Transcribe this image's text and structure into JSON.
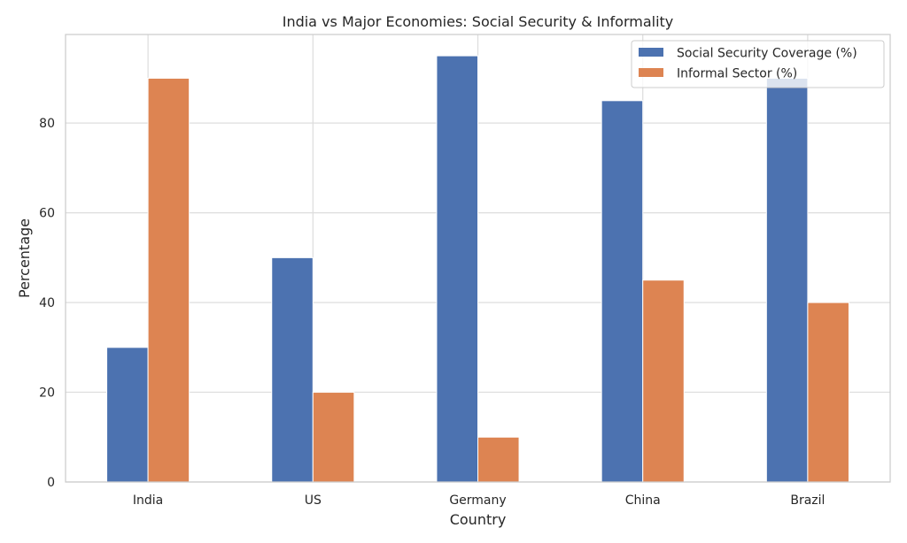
{
  "chart_data": {
    "type": "bar",
    "title": "India vs Major Economies: Social Security & Informality",
    "xlabel": "Country",
    "ylabel": "Percentage",
    "categories": [
      "India",
      "US",
      "Germany",
      "China",
      "Brazil"
    ],
    "series": [
      {
        "name": "Social Security Coverage (%)",
        "values": [
          30,
          50,
          95,
          85,
          90
        ],
        "color": "#4c72b0"
      },
      {
        "name": "Informal Sector (%)",
        "values": [
          90,
          20,
          10,
          45,
          40
        ],
        "color": "#dd8452"
      }
    ],
    "ylim": [
      0,
      99.75
    ],
    "yticks": [
      0,
      20,
      40,
      60,
      80
    ],
    "grid": true,
    "legend_position": "top-right"
  }
}
